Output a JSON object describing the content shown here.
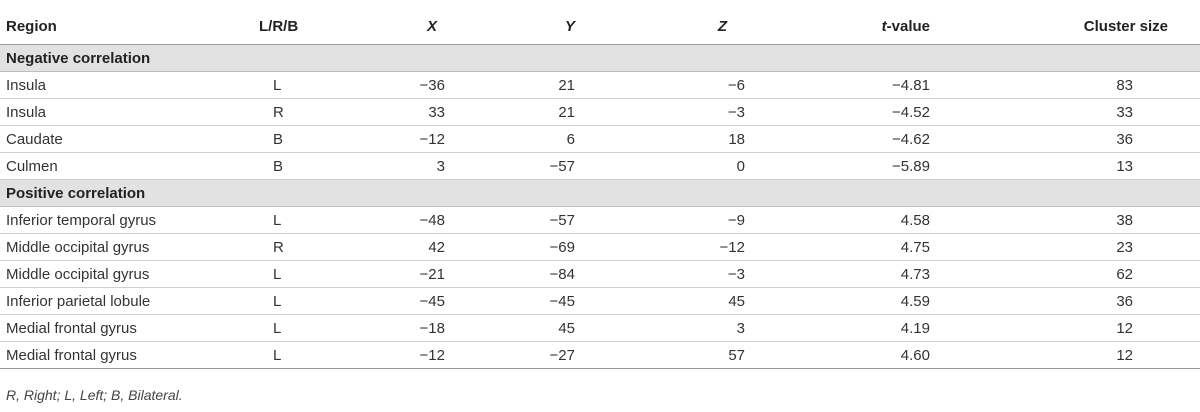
{
  "headers": {
    "region": "Region",
    "lrb": "L/R/B",
    "x": "X",
    "y": "Y",
    "z": "Z",
    "t_prefix": "t",
    "t_suffix": "-value",
    "cluster_size": "Cluster size"
  },
  "sections": [
    {
      "label": "Negative correlation",
      "rows": [
        {
          "region": "Insula",
          "lrb": "L",
          "x": "−36",
          "y": "21",
          "z": "−6",
          "t": "−4.81",
          "cluster": "83"
        },
        {
          "region": "Insula",
          "lrb": "R",
          "x": "33",
          "y": "21",
          "z": "−3",
          "t": "−4.52",
          "cluster": "33"
        },
        {
          "region": "Caudate",
          "lrb": "B",
          "x": "−12",
          "y": "6",
          "z": "18",
          "t": "−4.62",
          "cluster": "36"
        },
        {
          "region": "Culmen",
          "lrb": "B",
          "x": "3",
          "y": "−57",
          "z": "0",
          "t": "−5.89",
          "cluster": "13"
        }
      ]
    },
    {
      "label": "Positive correlation",
      "rows": [
        {
          "region": "Inferior temporal gyrus",
          "lrb": "L",
          "x": "−48",
          "y": "−57",
          "z": "−9",
          "t": "4.58",
          "cluster": "38"
        },
        {
          "region": "Middle occipital gyrus",
          "lrb": "R",
          "x": "42",
          "y": "−69",
          "z": "−12",
          "t": "4.75",
          "cluster": "23"
        },
        {
          "region": "Middle occipital gyrus",
          "lrb": "L",
          "x": "−21",
          "y": "−84",
          "z": "−3",
          "t": "4.73",
          "cluster": "62"
        },
        {
          "region": "Inferior parietal lobule",
          "lrb": "L",
          "x": "−45",
          "y": "−45",
          "z": "45",
          "t": "4.59",
          "cluster": "36"
        },
        {
          "region": "Medial frontal gyrus",
          "lrb": "L",
          "x": "−18",
          "y": "45",
          "z": "3",
          "t": "4.19",
          "cluster": "12"
        },
        {
          "region": "Medial frontal gyrus",
          "lrb": "L",
          "x": "−12",
          "y": "−27",
          "z": "57",
          "t": "4.60",
          "cluster": "12"
        }
      ]
    }
  ],
  "footnote": "R, Right; L, Left; B, Bilateral."
}
